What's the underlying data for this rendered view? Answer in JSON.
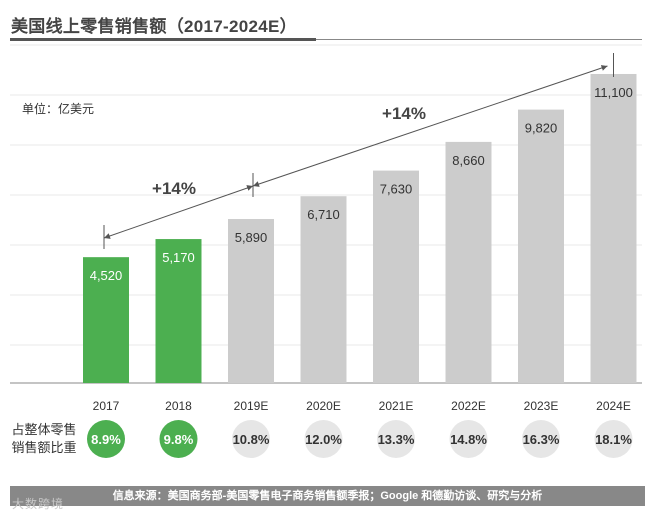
{
  "chart_data": {
    "type": "bar",
    "title": "美国线上零售销售额（2017-2024E）",
    "unit_label": "单位：亿美元",
    "categories": [
      "2017",
      "2018",
      "2019E",
      "2020E",
      "2021E",
      "2022E",
      "2023E",
      "2024E"
    ],
    "values": [
      4520,
      5170,
      5890,
      6710,
      7630,
      8660,
      9820,
      11100
    ],
    "value_labels": [
      "4,520",
      "5,170",
      "5,890",
      "6,710",
      "7,630",
      "8,660",
      "9,820",
      "11,100"
    ],
    "ylim": [
      0,
      12500
    ],
    "actual_color": "#4caf50",
    "estimate_color": "#cccccc",
    "actual_count": 2,
    "growth_annotations": [
      {
        "label": "+14%",
        "from": "2017",
        "to": "2019E"
      },
      {
        "label": "+14%",
        "from": "2019E",
        "to": "2024E"
      }
    ],
    "share_row": {
      "label_line1": "占整体零售",
      "label_line2": "销售额比重",
      "values": [
        "8.9%",
        "9.8%",
        "10.8%",
        "12.0%",
        "13.3%",
        "14.8%",
        "16.3%",
        "18.1%"
      ]
    }
  },
  "footer": {
    "source": "信息来源：美国商务部-美国零售电子商务销售额季报；Google 和德勤访谈、研究与分析"
  },
  "watermark": "大数跨境"
}
